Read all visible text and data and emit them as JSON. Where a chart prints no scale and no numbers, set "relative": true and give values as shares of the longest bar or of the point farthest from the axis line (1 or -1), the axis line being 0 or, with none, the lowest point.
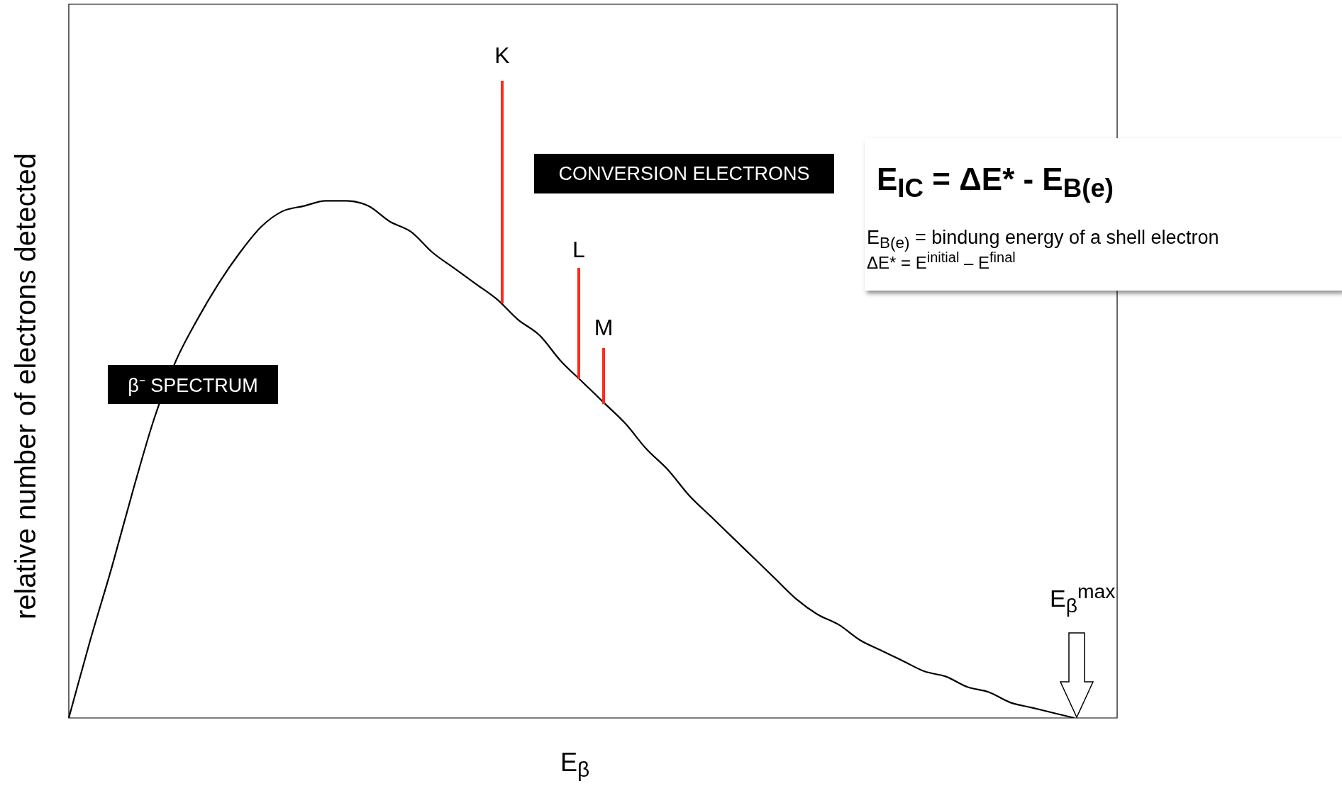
{
  "chart_data": {
    "type": "line",
    "relative": true,
    "xlabel": "E$_{β}$",
    "ylabel": "relative number of electrons detected",
    "categories": [
      null,
      null,
      null,
      null,
      null,
      null,
      null,
      null,
      null,
      null,
      null,
      null,
      null,
      null,
      null,
      null,
      null,
      null,
      null,
      null,
      null,
      null,
      null,
      null,
      null,
      null,
      null,
      null,
      null,
      null,
      null,
      null,
      null,
      null,
      null,
      null,
      null,
      null,
      null,
      null,
      null,
      null,
      null,
      null,
      null,
      null,
      null,
      null,
      null,
      null
    ],
    "series": [
      {
        "color": "#000000",
        "values": [
          0,
          0.15,
          0.29,
          0.44,
          0.58,
          0.69,
          0.77,
          0.84,
          0.9,
          0.95,
          0.98,
          0.99,
          1,
          1,
          0.99,
          0.96,
          0.94,
          0.9,
          0.87,
          0.84,
          0.81,
          0.77,
          0.74,
          0.69,
          0.65,
          0.61,
          0.57,
          0.52,
          0.48,
          0.43,
          0.39,
          0.35,
          0.31,
          0.27,
          0.23,
          0.2,
          0.18,
          0.15,
          0.13,
          0.11,
          0.09,
          0.08,
          0.06,
          0.05,
          0.03,
          0.02,
          0.01,
          0,
          null,
          null
        ]
      }
    ],
    "annotations": [
      "β⁻ SPECTRUM",
      "CONVERSION ELECTRONS",
      "E$_{IC}$ = ΔE* - E$_{B(e)}$",
      "E$_{B(e)}$ = bindung energy of a shell electron",
      "ΔE* = E$^{initial}$ – E$^{final}$",
      "E$_{β}$$^{max}$",
      "K",
      "L",
      "M"
    ],
    "marker": "none",
    "grid": false,
    "legend": false
  }
}
